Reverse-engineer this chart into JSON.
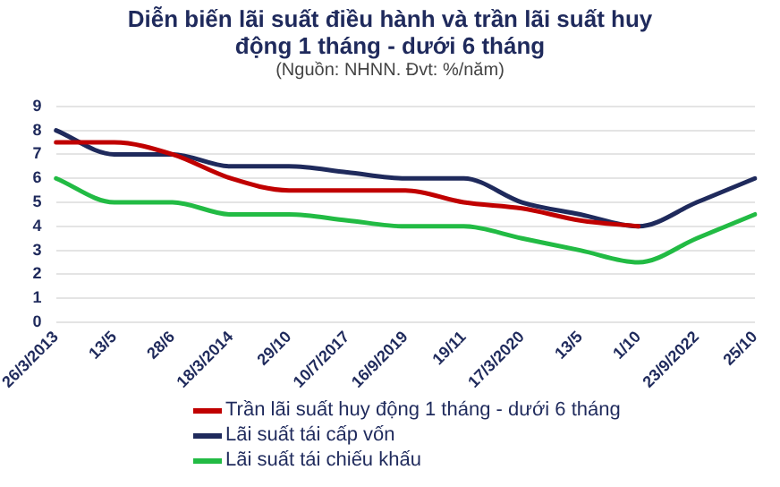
{
  "chart_data": {
    "type": "line",
    "title": "Diễn biến lãi suất điều hành và trần lãi suất huy động 1 tháng - dưới 6 tháng",
    "subtitle": "(Nguồn: NHNN. Đvt: %/năm)",
    "categories": [
      "26/3/2013",
      "13/5",
      "28/6",
      "18/3/2014",
      "29/10",
      "10/7/2017",
      "16/9/2019",
      "19/11",
      "17/3/2020",
      "13/5",
      "1/10",
      "23/9/2022",
      "25/10"
    ],
    "series": [
      {
        "name": "Trần lãi suất huy động 1 tháng - dưới 6 tháng",
        "color": "#c00000",
        "values": [
          7.5,
          7.5,
          7,
          6,
          5.5,
          5.5,
          5.5,
          5,
          4.75,
          4.25,
          4,
          null,
          null
        ]
      },
      {
        "name": "Lãi suất tái cấp vốn",
        "color": "#1f2a5c",
        "values": [
          8,
          7,
          7,
          6.5,
          6.5,
          6.25,
          6,
          6,
          5,
          4.5,
          4,
          5,
          6
        ]
      },
      {
        "name": "Lãi suất tái chiếu khấu",
        "color": "#22bb44",
        "values": [
          6,
          5,
          5,
          4.5,
          4.5,
          4.25,
          4,
          4,
          3.5,
          3,
          2.5,
          3.5,
          4.5
        ]
      }
    ],
    "ylim": [
      0,
      9
    ],
    "yticks": [
      0,
      1,
      2,
      3,
      4,
      5,
      6,
      7,
      8,
      9
    ],
    "grid": "y",
    "legend": "bottom"
  }
}
